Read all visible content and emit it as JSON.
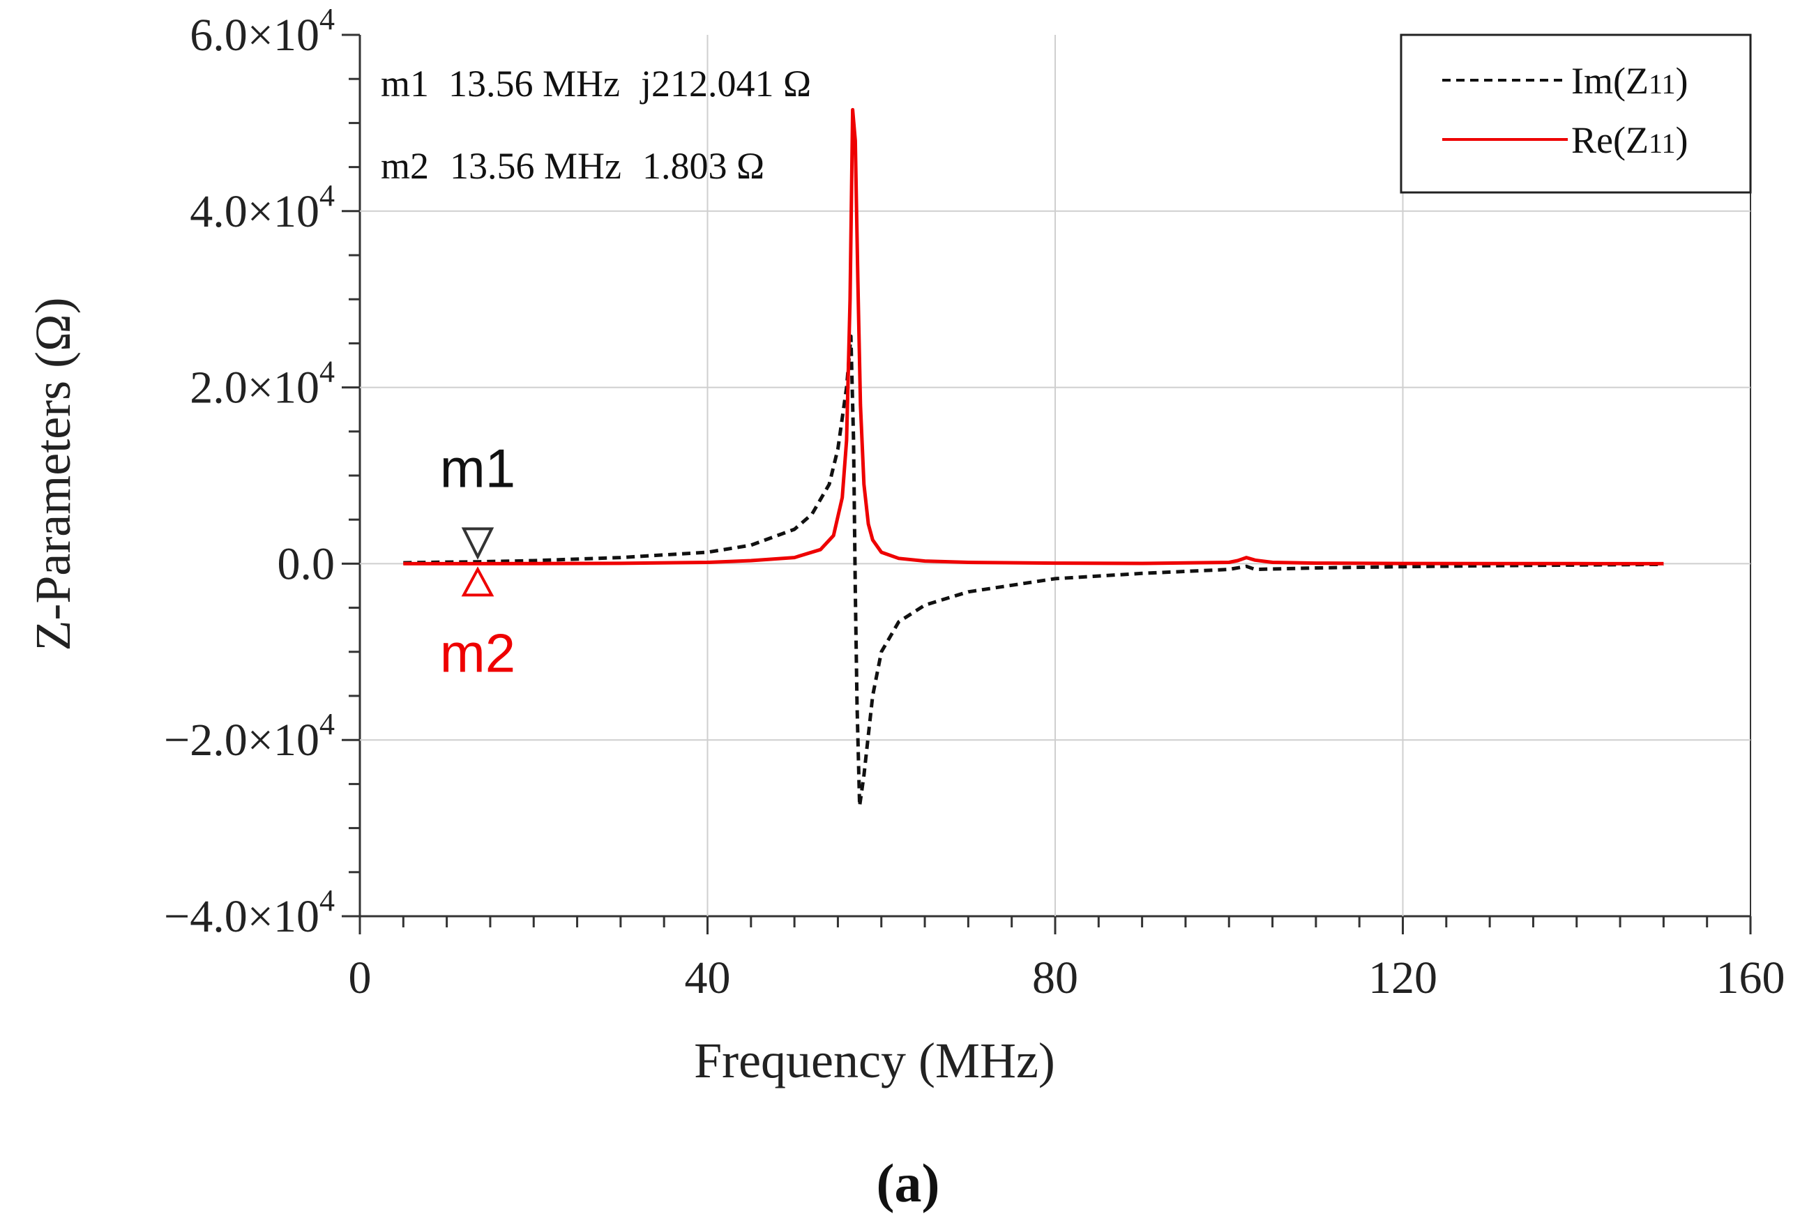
{
  "chart_data": {
    "type": "line",
    "title": "",
    "xlabel": "Frequency (MHz)",
    "ylabel": "Z-Parameters (Ω)",
    "xlim": [
      0,
      160
    ],
    "ylim": [
      -40000,
      60000
    ],
    "grid": true,
    "x_ticks": [
      {
        "value": 0,
        "label": "0"
      },
      {
        "value": 40,
        "label": "40"
      },
      {
        "value": 80,
        "label": "80"
      },
      {
        "value": 120,
        "label": "120"
      },
      {
        "value": 160,
        "label": "160"
      }
    ],
    "y_ticks": [
      {
        "value": 60000,
        "mantissa": "6.0×10",
        "exponent": "4"
      },
      {
        "value": 40000,
        "mantissa": "4.0×10",
        "exponent": "4"
      },
      {
        "value": 20000,
        "mantissa": "2.0×10",
        "exponent": "4"
      },
      {
        "value": 0,
        "mantissa": "0.0",
        "exponent": ""
      },
      {
        "value": -20000,
        "mantissa": "−2.0×10",
        "exponent": "4"
      },
      {
        "value": -40000,
        "mantissa": "−4.0×10",
        "exponent": "4"
      }
    ],
    "legend": {
      "position": "top-right",
      "entries": [
        {
          "series": "im",
          "label_main": "Im(Z",
          "label_sub": "11",
          "label_end": ")"
        },
        {
          "series": "re",
          "label_main": "Re(Z",
          "label_sub": "11",
          "label_end": ")"
        }
      ]
    },
    "series": [
      {
        "key": "im",
        "name": "Im(Z11)",
        "color": "#111111",
        "style": "dashed",
        "x": [
          5,
          10,
          13.56,
          20,
          30,
          40,
          45,
          50,
          52,
          54,
          55,
          56,
          56.5,
          56.8,
          57,
          57.2,
          57.5,
          58,
          59,
          60,
          62,
          65,
          70,
          80,
          90,
          100,
          102,
          103,
          110,
          120,
          130,
          140,
          150
        ],
        "y": [
          100,
          180,
          212,
          350,
          700,
          1300,
          2100,
          3900,
          5600,
          9000,
          13000,
          20000,
          25800,
          14000,
          -3000,
          -16000,
          -27500,
          -24000,
          -15000,
          -10000,
          -6600,
          -4700,
          -3200,
          -1700,
          -1100,
          -650,
          -300,
          -650,
          -480,
          -340,
          -230,
          -150,
          -80
        ]
      },
      {
        "key": "re",
        "name": "Re(Z11)",
        "color": "#ee0000",
        "style": "solid",
        "x": [
          5,
          13.56,
          20,
          30,
          40,
          45,
          50,
          53,
          54.5,
          55.5,
          56,
          56.4,
          56.7,
          57,
          57.3,
          57.6,
          58,
          58.5,
          59,
          60,
          62,
          65,
          70,
          80,
          90,
          100,
          101,
          102,
          103,
          105,
          110,
          120,
          130,
          140,
          150
        ],
        "y": [
          0,
          1.8,
          5,
          40,
          150,
          350,
          700,
          1600,
          3200,
          7500,
          14000,
          30000,
          51500,
          48000,
          32000,
          18000,
          9000,
          4500,
          2700,
          1300,
          600,
          300,
          150,
          60,
          30,
          150,
          350,
          700,
          400,
          150,
          60,
          25,
          12,
          6,
          3
        ]
      }
    ],
    "markers": [
      {
        "name": "m1",
        "x": 13.56,
        "value_text": "j212.041 Ω",
        "freq_text": "13.56 MHz",
        "shape": "triangle-down",
        "color": "#333333",
        "label_color": "#111111"
      },
      {
        "name": "m2",
        "x": 13.56,
        "value_text": "1.803 Ω",
        "freq_text": "13.56 MHz",
        "shape": "triangle-up",
        "color": "#ee0000",
        "label_color": "#ee0000"
      }
    ],
    "caption": "(a)"
  }
}
